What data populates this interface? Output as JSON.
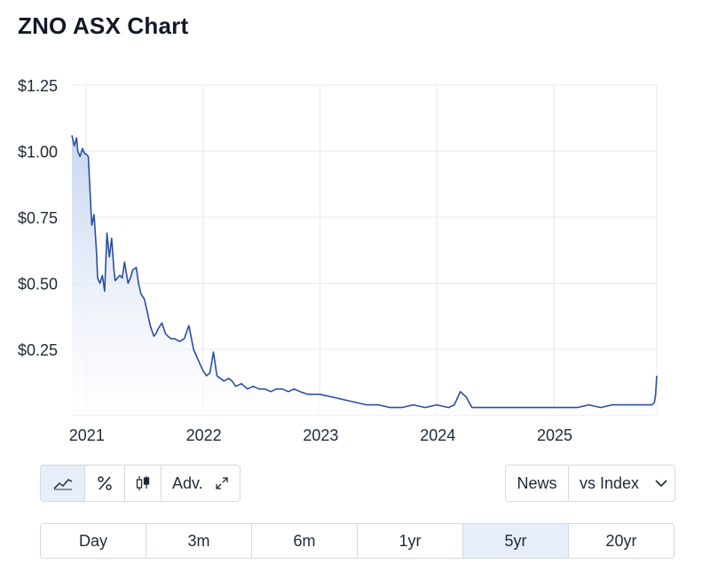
{
  "title": "ZNO ASX Chart",
  "chart_data": {
    "type": "area",
    "ylim": [
      0,
      1.25
    ],
    "y_ticks": [
      "$1.25",
      "$1.00",
      "$0.75",
      "$0.50",
      "$0.25"
    ],
    "y_tick_values": [
      1.25,
      1.0,
      0.75,
      0.5,
      0.25
    ],
    "x_ticks": [
      "2021",
      "2022",
      "2023",
      "2024",
      "2025"
    ],
    "x_tick_values": [
      2021.0,
      2022.0,
      2023.0,
      2024.0,
      2025.0
    ],
    "xlim": [
      2020.88,
      2025.88
    ],
    "grid": true,
    "series": [
      {
        "color": "#2a4ea2",
        "x": [
          2020.88,
          2020.9,
          2020.92,
          2020.93,
          2020.95,
          2020.97,
          2020.99,
          2021.0,
          2021.02,
          2021.05,
          2021.07,
          2021.09,
          2021.1,
          2021.12,
          2021.14,
          2021.16,
          2021.18,
          2021.2,
          2021.22,
          2021.24,
          2021.25,
          2021.27,
          2021.29,
          2021.31,
          2021.33,
          2021.36,
          2021.38,
          2021.4,
          2021.43,
          2021.45,
          2021.47,
          2021.5,
          2021.53,
          2021.55,
          2021.58,
          2021.6,
          2021.62,
          2021.65,
          2021.68,
          2021.7,
          2021.73,
          2021.76,
          2021.8,
          2021.84,
          2021.88,
          2021.92,
          2021.96,
          2022.0,
          2022.03,
          2022.06,
          2022.09,
          2022.12,
          2022.15,
          2022.18,
          2022.22,
          2022.25,
          2022.28,
          2022.33,
          2022.38,
          2022.43,
          2022.48,
          2022.53,
          2022.58,
          2022.63,
          2022.68,
          2022.73,
          2022.78,
          2022.83,
          2022.9,
          2023.0,
          2023.1,
          2023.2,
          2023.3,
          2023.4,
          2023.5,
          2023.6,
          2023.7,
          2023.8,
          2023.9,
          2024.0,
          2024.1,
          2024.15,
          2024.2,
          2024.25,
          2024.3,
          2024.4,
          2024.5,
          2024.6,
          2024.7,
          2024.8,
          2024.9,
          2025.0,
          2025.1,
          2025.2,
          2025.3,
          2025.4,
          2025.5,
          2025.6,
          2025.7,
          2025.8,
          2025.84,
          2025.86,
          2025.87,
          2025.88
        ],
        "y": [
          1.06,
          1.02,
          1.05,
          1.0,
          0.98,
          1.01,
          0.99,
          0.99,
          0.98,
          0.72,
          0.76,
          0.62,
          0.52,
          0.5,
          0.53,
          0.47,
          0.69,
          0.6,
          0.67,
          0.55,
          0.51,
          0.52,
          0.53,
          0.52,
          0.58,
          0.5,
          0.52,
          0.55,
          0.56,
          0.5,
          0.46,
          0.44,
          0.38,
          0.34,
          0.3,
          0.31,
          0.33,
          0.35,
          0.31,
          0.3,
          0.29,
          0.29,
          0.28,
          0.29,
          0.34,
          0.25,
          0.21,
          0.17,
          0.15,
          0.16,
          0.24,
          0.15,
          0.14,
          0.13,
          0.14,
          0.13,
          0.11,
          0.12,
          0.1,
          0.11,
          0.1,
          0.1,
          0.09,
          0.1,
          0.1,
          0.09,
          0.1,
          0.09,
          0.08,
          0.08,
          0.07,
          0.06,
          0.05,
          0.04,
          0.04,
          0.03,
          0.03,
          0.04,
          0.03,
          0.04,
          0.03,
          0.04,
          0.09,
          0.07,
          0.03,
          0.03,
          0.03,
          0.03,
          0.03,
          0.03,
          0.03,
          0.03,
          0.03,
          0.03,
          0.04,
          0.03,
          0.04,
          0.04,
          0.04,
          0.04,
          0.04,
          0.05,
          0.08,
          0.15
        ]
      }
    ]
  },
  "toolbar": {
    "line_icon": "line-chart-icon",
    "percent_icon": "percent-icon",
    "candle_icon": "candlestick-icon",
    "adv_label": "Adv.",
    "expand_icon": "expand-icon"
  },
  "right_tools": {
    "news_label": "News",
    "index_label": "vs Index",
    "chevron_icon": "chevron-down-icon"
  },
  "ranges": [
    "Day",
    "3m",
    "6m",
    "1yr",
    "5yr",
    "20yr"
  ],
  "active_range": "5yr",
  "colors": {
    "line": "#2a4ea2",
    "fill_top": "#c5d4f0",
    "active_bg": "#e8eef9"
  }
}
